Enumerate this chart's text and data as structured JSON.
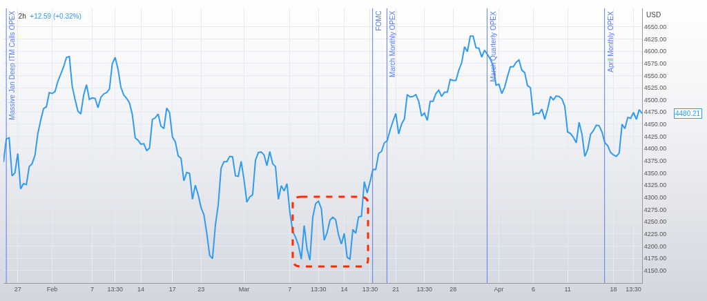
{
  "chart_data": {
    "type": "line",
    "title": "2h",
    "subtitle": "+12.59 (+0.32%)",
    "ylabel": "USD",
    "categories": [
      null,
      null,
      null,
      null,
      null,
      "27",
      null,
      null,
      null,
      null,
      null,
      null,
      null,
      null,
      null,
      null,
      null,
      "Feb",
      null,
      null,
      null,
      null,
      null,
      null,
      null,
      null,
      null,
      null,
      null,
      null,
      null,
      "7",
      null,
      null,
      null,
      null,
      null,
      null,
      null,
      "13:30",
      null,
      null,
      null,
      null,
      null,
      null,
      null,
      null,
      "14",
      null,
      null,
      null,
      null,
      null,
      null,
      null,
      null,
      null,
      null,
      "17",
      null,
      null,
      null,
      null,
      null,
      null,
      null,
      null,
      null,
      "23",
      null,
      null,
      null,
      null,
      null,
      null,
      null,
      null,
      null,
      null,
      null,
      null,
      null,
      null,
      "Mar",
      null,
      null,
      null,
      null,
      null,
      null,
      null,
      null,
      null,
      null,
      null,
      null,
      null,
      null,
      null,
      "7",
      null,
      null,
      null,
      null,
      null,
      null,
      null,
      null,
      null,
      "13:30",
      null,
      null,
      null,
      null,
      null,
      null,
      null,
      null,
      "14",
      null,
      null,
      null,
      null,
      null,
      null,
      null,
      null,
      "13:30",
      null,
      null,
      null,
      null,
      null,
      null,
      null,
      null,
      "21",
      null,
      null,
      null,
      null,
      null,
      null,
      null,
      null,
      null,
      "13:30",
      null,
      null,
      null,
      null,
      null,
      null,
      null,
      null,
      null,
      "28",
      null,
      null,
      null,
      null,
      null,
      null,
      null,
      null,
      null,
      null,
      null,
      null,
      null,
      null,
      null,
      "Apr",
      null,
      null,
      null,
      null,
      null,
      null,
      null,
      null,
      null,
      null,
      null,
      "6",
      null,
      null,
      null,
      null,
      null,
      null,
      null,
      null,
      null,
      null,
      null,
      "11",
      null,
      null,
      null,
      null,
      null,
      null,
      null,
      null,
      null,
      null,
      null,
      null,
      null,
      null,
      null,
      "18",
      null,
      null,
      null,
      null,
      null,
      null,
      "13:30",
      null,
      null,
      null
    ],
    "series": [
      {
        "color": "#2f9bf0",
        "values": [
          4372,
          4420,
          4422,
          4344,
          4350,
          4390,
          4317,
          4328,
          4326,
          4363,
          4369,
          4386,
          4431,
          4458,
          4482,
          4486,
          4515,
          4513,
          4517,
          4538,
          4553,
          4568,
          4587,
          4589,
          4528,
          4501,
          4477,
          4471,
          4510,
          4531,
          4501,
          4504,
          4503,
          4484,
          4505,
          4512,
          4515,
          4522,
          4574,
          4587,
          4563,
          4526,
          4510,
          4503,
          4494,
          4470,
          4422,
          4417,
          4409,
          4410,
          4396,
          4401,
          4460,
          4463,
          4471,
          4446,
          4441,
          4483,
          4474,
          4424,
          4414,
          4385,
          4380,
          4334,
          4351,
          4349,
          4296,
          4325,
          4305,
          4279,
          4264,
          4226,
          4181,
          4174,
          4243,
          4285,
          4360,
          4373,
          4373,
          4384,
          4383,
          4344,
          4343,
          4374,
          4336,
          4290,
          4301,
          4305,
          4376,
          4392,
          4393,
          4387,
          4365,
          4394,
          4369,
          4363,
          4296,
          4324,
          4313,
          4328,
          4270,
          4230,
          4218,
          4202,
          4173,
          4242,
          4194,
          4171,
          4259,
          4287,
          4292,
          4277,
          4212,
          4227,
          4253,
          4259,
          4254,
          4223,
          4204,
          4226,
          4177,
          4173,
          4234,
          4226,
          4260,
          4261,
          4332,
          4309,
          4332,
          4357,
          4357,
          4390,
          4394,
          4412,
          4416,
          4438,
          4456,
          4472,
          4430,
          4450,
          4461,
          4511,
          4506,
          4507,
          4511,
          4497,
          4467,
          4473,
          4458,
          4497,
          4497,
          4513,
          4520,
          4507,
          4516,
          4516,
          4542,
          4540,
          4540,
          4561,
          4576,
          4609,
          4599,
          4631,
          4631,
          4607,
          4606,
          4588,
          4602,
          4593,
          4584,
          4570,
          4530,
          4532,
          4513,
          4526,
          4548,
          4568,
          4568,
          4577,
          4582,
          4561,
          4556,
          4529,
          4525,
          4469,
          4473,
          4472,
          4481,
          4460,
          4481,
          4507,
          4500,
          4508,
          4507,
          4502,
          4487,
          4434,
          4431,
          4423,
          4412,
          4454,
          4430,
          4384,
          4398,
          4429,
          4437,
          4448,
          4447,
          4434,
          4412,
          4406,
          4392,
          4387,
          4384,
          4391,
          4450,
          4441,
          4464,
          4462,
          4474,
          4460,
          4480,
          4472
        ]
      }
    ],
    "ylim": [
      4124,
      4688
    ],
    "yticks": [
      {
        "value": 4150,
        "label": "4150.00"
      },
      {
        "value": 4175,
        "label": "4175.00"
      },
      {
        "value": 4200,
        "label": "4200.00"
      },
      {
        "value": 4225,
        "label": "4225.00"
      },
      {
        "value": 4250,
        "label": "4250.00"
      },
      {
        "value": 4275,
        "label": "4275.00"
      },
      {
        "value": 4300,
        "label": "4300.00"
      },
      {
        "value": 4325,
        "label": "4325.00"
      },
      {
        "value": 4350,
        "label": "4350.00"
      },
      {
        "value": 4375,
        "label": "4375.00"
      },
      {
        "value": 4400,
        "label": "4400.00"
      },
      {
        "value": 4425,
        "label": "4425.00"
      },
      {
        "value": 4450,
        "label": "4450.00"
      },
      {
        "value": 4475,
        "label": "4475.00"
      },
      {
        "value": 4500,
        "label": "4500.00"
      },
      {
        "value": 4525,
        "label": "4525.00"
      },
      {
        "value": 4550,
        "label": "4550.00"
      },
      {
        "value": 4575,
        "label": "4575.00"
      },
      {
        "value": 4600,
        "label": "4600.00"
      },
      {
        "value": 4625,
        "label": "4625.00"
      },
      {
        "value": 4650,
        "label": "4650.00"
      }
    ],
    "ref_lines": [
      {
        "axis": "x",
        "label": "Massive Jan Deep ITM Calls OPEX",
        "color": "#5a7df5"
      },
      {
        "axis": "x",
        "label": "FOMC",
        "color": "#5a7df5"
      },
      {
        "axis": "x",
        "label": "March Monthly OPEX",
        "color": "#5a7df5"
      },
      {
        "axis": "x",
        "label": "March Quarterly OPEX",
        "color": "#5a7df5"
      },
      {
        "axis": "x",
        "label": "April Monthly OPEX",
        "color": "#5a7df5"
      }
    ],
    "annotations": [
      "4480.21"
    ],
    "grid": true,
    "marker": "none",
    "line_style": "solid"
  }
}
